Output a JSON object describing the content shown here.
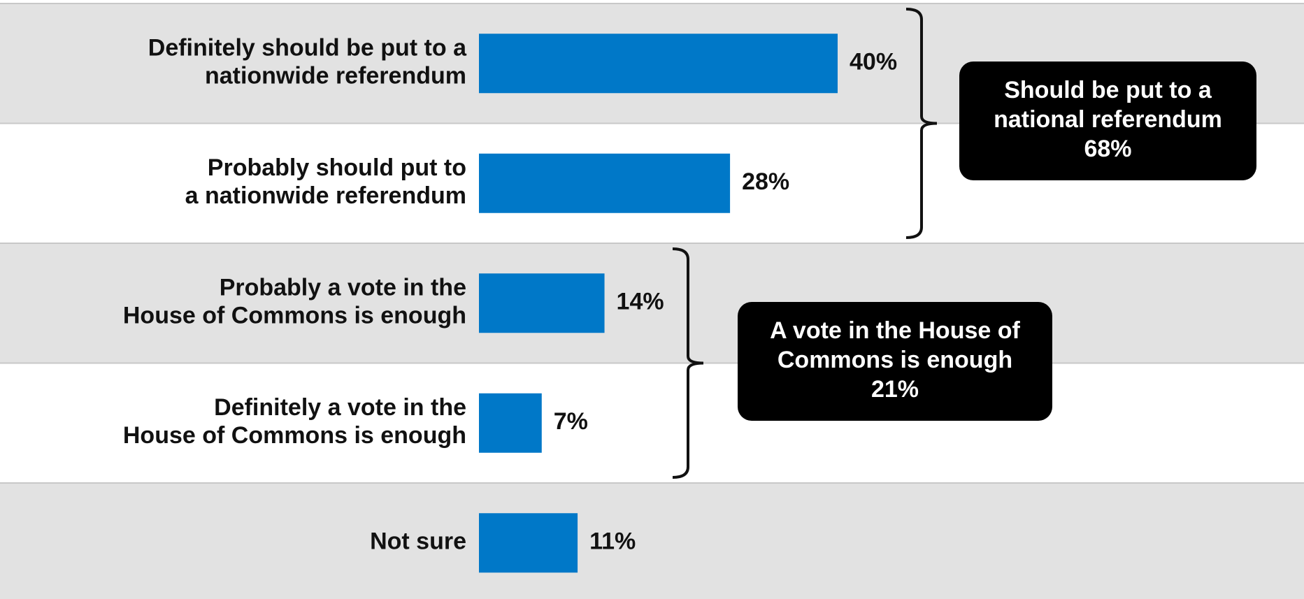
{
  "chart_data": {
    "type": "bar",
    "orientation": "horizontal",
    "categories": [
      [
        "Definitely should be put to a",
        "nationwide referendum"
      ],
      [
        "Probably should put to",
        "a nationwide referendum"
      ],
      [
        "Probably a vote in the",
        "House of Commons is enough"
      ],
      [
        "Definitely a vote in the",
        "House of Commons is enough"
      ],
      [
        "Not sure"
      ]
    ],
    "values": [
      40,
      28,
      14,
      7,
      11
    ],
    "value_labels": [
      "40%",
      "28%",
      "14%",
      "7%",
      "11%"
    ],
    "xlim": [
      0,
      40
    ],
    "bar_color": "#0078C8",
    "band_colors": [
      "#E2E2E2",
      "#FFFFFF"
    ],
    "grid": false,
    "legend": "none",
    "groups": [
      {
        "rows": [
          0,
          1
        ],
        "text": [
          "Should be put to a",
          "national referendum",
          "68%"
        ]
      },
      {
        "rows": [
          2,
          3
        ],
        "text": [
          "A vote in the House of",
          "Commons is enough",
          "21%"
        ]
      }
    ]
  }
}
